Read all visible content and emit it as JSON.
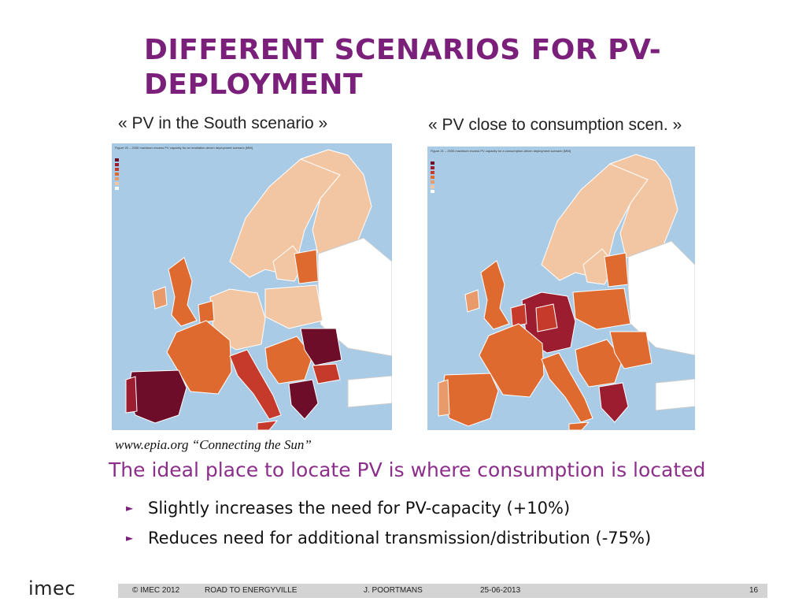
{
  "slide": {
    "title": "DIFFERENT SCENARIOS FOR PV-DEPLOYMENT",
    "maps": [
      {
        "caption": "« PV in the South scenario »",
        "figure_note": "Figure 20 – 2030 maximum excess PV capacity for an irradiation-driven deployment scenario [MW]"
      },
      {
        "caption": "« PV close to consumption scen. »",
        "figure_note": "Figure 21 – 2030 maximum excess PV capacity for a consumption-driven deployment scenario [MW]"
      }
    ],
    "legend_colors": [
      "#6e0d2a",
      "#9c1c30",
      "#c63a2c",
      "#de6a30",
      "#e99a6a",
      "#f3c6a3",
      "#ffffff"
    ],
    "source": "www.epia.org  “Connecting the Sun”",
    "main_point": "The ideal place to locate PV is where consumption is located",
    "bullets": [
      "Slightly increases the need for PV-capacity (+10%)",
      "Reduces need for additional transmission/distribution (-75%)"
    ],
    "logo": "imec",
    "footer": {
      "copyright": "© IMEC 2012",
      "project": "ROAD TO ENERGYVILLE",
      "author": "J. POORTMANS",
      "date": "25-06-2013",
      "page": "16"
    },
    "colors": {
      "title": "#7a1f7a",
      "accent_text": "#8b2f8b",
      "sea": "#a9cbe6",
      "footer_bar": "#d4d4d4"
    }
  }
}
